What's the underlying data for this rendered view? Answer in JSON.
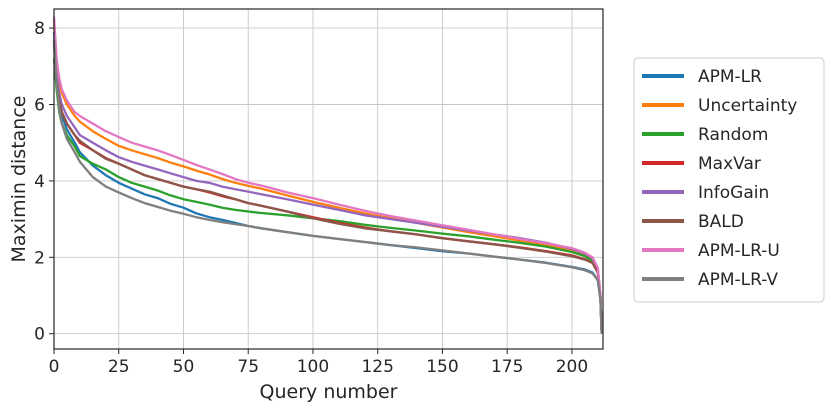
{
  "chart_data": {
    "type": "line",
    "title": "",
    "xlabel": "Query number",
    "ylabel": "Maximin distance",
    "xlim": [
      0,
      212
    ],
    "ylim": [
      -0.4,
      8.5
    ],
    "xticks": [
      0,
      25,
      50,
      75,
      100,
      125,
      150,
      175,
      200
    ],
    "yticks": [
      0,
      2,
      4,
      6,
      8
    ],
    "grid": true,
    "legend_position": "outside-right",
    "series": [
      {
        "name": "APM-LR",
        "color": "#1f77b4",
        "points": [
          [
            0,
            7.9
          ],
          [
            1,
            6.9
          ],
          [
            2,
            6.1
          ],
          [
            3,
            5.7
          ],
          [
            5,
            5.35
          ],
          [
            8,
            5.0
          ],
          [
            10,
            4.75
          ],
          [
            15,
            4.4
          ],
          [
            20,
            4.15
          ],
          [
            25,
            3.95
          ],
          [
            30,
            3.8
          ],
          [
            35,
            3.65
          ],
          [
            40,
            3.55
          ],
          [
            45,
            3.4
          ],
          [
            50,
            3.3
          ],
          [
            55,
            3.15
          ],
          [
            60,
            3.05
          ],
          [
            65,
            2.98
          ],
          [
            70,
            2.9
          ],
          [
            75,
            2.82
          ],
          [
            80,
            2.76
          ],
          [
            90,
            2.66
          ],
          [
            100,
            2.56
          ],
          [
            110,
            2.48
          ],
          [
            120,
            2.4
          ],
          [
            130,
            2.32
          ],
          [
            140,
            2.24
          ],
          [
            150,
            2.16
          ],
          [
            160,
            2.1
          ],
          [
            170,
            2.02
          ],
          [
            180,
            1.94
          ],
          [
            190,
            1.86
          ],
          [
            200,
            1.75
          ],
          [
            205,
            1.68
          ],
          [
            208,
            1.6
          ],
          [
            210,
            1.4
          ],
          [
            211,
            0.9
          ],
          [
            211.5,
            0.0
          ]
        ]
      },
      {
        "name": "Uncertainty",
        "color": "#ff7f0e",
        "points": [
          [
            0,
            8.2
          ],
          [
            1,
            7.1
          ],
          [
            2,
            6.6
          ],
          [
            3,
            6.3
          ],
          [
            5,
            6.0
          ],
          [
            8,
            5.7
          ],
          [
            10,
            5.55
          ],
          [
            15,
            5.3
          ],
          [
            20,
            5.1
          ],
          [
            25,
            4.92
          ],
          [
            30,
            4.8
          ],
          [
            35,
            4.7
          ],
          [
            40,
            4.6
          ],
          [
            45,
            4.48
          ],
          [
            50,
            4.38
          ],
          [
            55,
            4.27
          ],
          [
            60,
            4.17
          ],
          [
            65,
            4.05
          ],
          [
            70,
            3.95
          ],
          [
            75,
            3.87
          ],
          [
            80,
            3.8
          ],
          [
            90,
            3.62
          ],
          [
            100,
            3.45
          ],
          [
            110,
            3.3
          ],
          [
            120,
            3.15
          ],
          [
            130,
            3.02
          ],
          [
            140,
            2.9
          ],
          [
            150,
            2.78
          ],
          [
            160,
            2.66
          ],
          [
            170,
            2.55
          ],
          [
            180,
            2.44
          ],
          [
            190,
            2.33
          ],
          [
            200,
            2.2
          ],
          [
            205,
            2.08
          ],
          [
            208,
            1.95
          ],
          [
            210,
            1.7
          ],
          [
            211,
            1.0
          ],
          [
            211.5,
            0.0
          ]
        ]
      },
      {
        "name": "Random",
        "color": "#2ca02c",
        "points": [
          [
            0,
            7.2
          ],
          [
            1,
            6.4
          ],
          [
            2,
            5.8
          ],
          [
            3,
            5.5
          ],
          [
            5,
            5.2
          ],
          [
            8,
            4.9
          ],
          [
            10,
            4.65
          ],
          [
            15,
            4.45
          ],
          [
            20,
            4.3
          ],
          [
            25,
            4.1
          ],
          [
            30,
            3.95
          ],
          [
            35,
            3.85
          ],
          [
            40,
            3.75
          ],
          [
            45,
            3.62
          ],
          [
            50,
            3.52
          ],
          [
            55,
            3.45
          ],
          [
            60,
            3.38
          ],
          [
            65,
            3.3
          ],
          [
            70,
            3.24
          ],
          [
            75,
            3.2
          ],
          [
            80,
            3.16
          ],
          [
            90,
            3.1
          ],
          [
            100,
            3.02
          ],
          [
            110,
            2.95
          ],
          [
            120,
            2.85
          ],
          [
            130,
            2.77
          ],
          [
            140,
            2.7
          ],
          [
            150,
            2.62
          ],
          [
            160,
            2.55
          ],
          [
            170,
            2.46
          ],
          [
            180,
            2.38
          ],
          [
            190,
            2.28
          ],
          [
            200,
            2.14
          ],
          [
            205,
            2.03
          ],
          [
            208,
            1.9
          ],
          [
            210,
            1.65
          ],
          [
            211,
            1.0
          ],
          [
            211.5,
            0.0
          ]
        ]
      },
      {
        "name": "MaxVar",
        "color": "#d62728",
        "points": [
          [
            0,
            7.7
          ],
          [
            1,
            6.7
          ],
          [
            2,
            6.1
          ],
          [
            3,
            5.8
          ],
          [
            5,
            5.5
          ],
          [
            8,
            5.2
          ],
          [
            10,
            5.0
          ],
          [
            15,
            4.8
          ],
          [
            20,
            4.6
          ],
          [
            25,
            4.45
          ],
          [
            30,
            4.3
          ],
          [
            35,
            4.15
          ],
          [
            40,
            4.05
          ],
          [
            45,
            3.95
          ],
          [
            50,
            3.85
          ],
          [
            55,
            3.78
          ],
          [
            60,
            3.7
          ],
          [
            65,
            3.6
          ],
          [
            70,
            3.52
          ],
          [
            75,
            3.42
          ],
          [
            80,
            3.35
          ],
          [
            90,
            3.2
          ],
          [
            100,
            3.05
          ],
          [
            110,
            2.9
          ],
          [
            120,
            2.78
          ],
          [
            130,
            2.68
          ],
          [
            140,
            2.6
          ],
          [
            150,
            2.5
          ],
          [
            160,
            2.42
          ],
          [
            170,
            2.34
          ],
          [
            180,
            2.26
          ],
          [
            190,
            2.16
          ],
          [
            200,
            2.05
          ],
          [
            205,
            1.95
          ],
          [
            208,
            1.85
          ],
          [
            210,
            1.6
          ],
          [
            211,
            1.0
          ],
          [
            211.5,
            0.0
          ]
        ]
      },
      {
        "name": "InfoGain",
        "color": "#9467bd",
        "points": [
          [
            0,
            7.7
          ],
          [
            1,
            6.8
          ],
          [
            2,
            6.3
          ],
          [
            3,
            6.0
          ],
          [
            5,
            5.7
          ],
          [
            8,
            5.4
          ],
          [
            10,
            5.2
          ],
          [
            15,
            5.0
          ],
          [
            20,
            4.8
          ],
          [
            25,
            4.62
          ],
          [
            30,
            4.5
          ],
          [
            35,
            4.4
          ],
          [
            40,
            4.3
          ],
          [
            45,
            4.2
          ],
          [
            50,
            4.1
          ],
          [
            55,
            4.0
          ],
          [
            60,
            3.95
          ],
          [
            65,
            3.85
          ],
          [
            70,
            3.78
          ],
          [
            75,
            3.72
          ],
          [
            80,
            3.65
          ],
          [
            90,
            3.52
          ],
          [
            100,
            3.38
          ],
          [
            110,
            3.24
          ],
          [
            120,
            3.1
          ],
          [
            130,
            3.0
          ],
          [
            140,
            2.9
          ],
          [
            150,
            2.8
          ],
          [
            160,
            2.7
          ],
          [
            170,
            2.6
          ],
          [
            180,
            2.5
          ],
          [
            190,
            2.38
          ],
          [
            200,
            2.22
          ],
          [
            205,
            2.1
          ],
          [
            208,
            1.98
          ],
          [
            210,
            1.7
          ],
          [
            211,
            1.0
          ],
          [
            211.5,
            0.0
          ]
        ]
      },
      {
        "name": "BALD",
        "color": "#8c564b",
        "points": [
          [
            0,
            7.6
          ],
          [
            1,
            6.6
          ],
          [
            2,
            6.1
          ],
          [
            3,
            5.8
          ],
          [
            5,
            5.5
          ],
          [
            8,
            5.2
          ],
          [
            10,
            5.05
          ],
          [
            15,
            4.8
          ],
          [
            20,
            4.58
          ],
          [
            25,
            4.45
          ],
          [
            30,
            4.3
          ],
          [
            35,
            4.15
          ],
          [
            40,
            4.05
          ],
          [
            45,
            3.95
          ],
          [
            50,
            3.85
          ],
          [
            55,
            3.78
          ],
          [
            60,
            3.72
          ],
          [
            65,
            3.62
          ],
          [
            70,
            3.52
          ],
          [
            75,
            3.42
          ],
          [
            80,
            3.35
          ],
          [
            90,
            3.2
          ],
          [
            100,
            3.02
          ],
          [
            110,
            2.88
          ],
          [
            120,
            2.76
          ],
          [
            130,
            2.68
          ],
          [
            140,
            2.6
          ],
          [
            150,
            2.5
          ],
          [
            160,
            2.42
          ],
          [
            170,
            2.34
          ],
          [
            180,
            2.25
          ],
          [
            190,
            2.15
          ],
          [
            200,
            2.03
          ],
          [
            205,
            1.94
          ],
          [
            208,
            1.85
          ],
          [
            210,
            1.6
          ],
          [
            211,
            1.0
          ],
          [
            211.5,
            0.0
          ]
        ]
      },
      {
        "name": "APM-LR-U",
        "color": "#e377c2",
        "points": [
          [
            0,
            8.3
          ],
          [
            1,
            7.2
          ],
          [
            2,
            6.7
          ],
          [
            3,
            6.4
          ],
          [
            5,
            6.1
          ],
          [
            8,
            5.8
          ],
          [
            10,
            5.7
          ],
          [
            15,
            5.5
          ],
          [
            20,
            5.3
          ],
          [
            25,
            5.15
          ],
          [
            30,
            5.0
          ],
          [
            35,
            4.9
          ],
          [
            40,
            4.8
          ],
          [
            45,
            4.68
          ],
          [
            50,
            4.55
          ],
          [
            55,
            4.42
          ],
          [
            60,
            4.3
          ],
          [
            65,
            4.18
          ],
          [
            70,
            4.05
          ],
          [
            75,
            3.95
          ],
          [
            80,
            3.88
          ],
          [
            90,
            3.7
          ],
          [
            100,
            3.55
          ],
          [
            110,
            3.38
          ],
          [
            120,
            3.22
          ],
          [
            130,
            3.08
          ],
          [
            140,
            2.96
          ],
          [
            150,
            2.84
          ],
          [
            160,
            2.72
          ],
          [
            170,
            2.6
          ],
          [
            180,
            2.48
          ],
          [
            190,
            2.37
          ],
          [
            200,
            2.24
          ],
          [
            205,
            2.12
          ],
          [
            208,
            2.0
          ],
          [
            210,
            1.72
          ],
          [
            211,
            1.0
          ],
          [
            211.5,
            0.0
          ]
        ]
      },
      {
        "name": "APM-LR-V",
        "color": "#7f7f7f",
        "points": [
          [
            0,
            7.7
          ],
          [
            1,
            6.6
          ],
          [
            2,
            5.9
          ],
          [
            3,
            5.5
          ],
          [
            5,
            5.1
          ],
          [
            8,
            4.75
          ],
          [
            10,
            4.5
          ],
          [
            15,
            4.1
          ],
          [
            20,
            3.85
          ],
          [
            25,
            3.7
          ],
          [
            30,
            3.55
          ],
          [
            35,
            3.42
          ],
          [
            40,
            3.32
          ],
          [
            45,
            3.22
          ],
          [
            50,
            3.14
          ],
          [
            55,
            3.05
          ],
          [
            60,
            2.98
          ],
          [
            65,
            2.92
          ],
          [
            70,
            2.87
          ],
          [
            75,
            2.82
          ],
          [
            80,
            2.76
          ],
          [
            90,
            2.66
          ],
          [
            100,
            2.56
          ],
          [
            110,
            2.48
          ],
          [
            120,
            2.4
          ],
          [
            130,
            2.32
          ],
          [
            140,
            2.26
          ],
          [
            150,
            2.18
          ],
          [
            160,
            2.1
          ],
          [
            170,
            2.02
          ],
          [
            180,
            1.94
          ],
          [
            190,
            1.85
          ],
          [
            200,
            1.74
          ],
          [
            205,
            1.66
          ],
          [
            208,
            1.58
          ],
          [
            210,
            1.4
          ],
          [
            211,
            0.9
          ],
          [
            211.5,
            0.0
          ]
        ]
      }
    ]
  }
}
